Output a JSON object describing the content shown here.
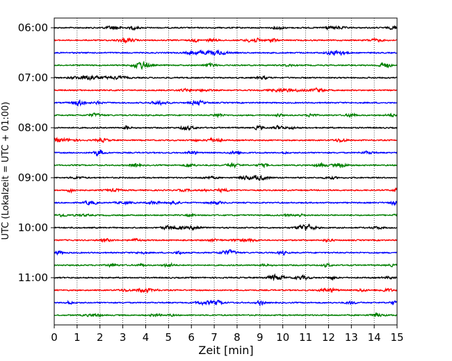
{
  "chart_data": {
    "type": "line",
    "title": "",
    "xlabel": "Zeit  [min]",
    "ylabel": "UTC (Lokalzeit = UTC + 01:00)",
    "xlim": [
      0,
      15
    ],
    "x_ticks": [
      0,
      1,
      2,
      3,
      4,
      5,
      6,
      7,
      8,
      9,
      10,
      11,
      12,
      13,
      14,
      15
    ],
    "grid": "vertical dotted at each minute",
    "y_ticks": [
      "06:00",
      "07:00",
      "08:00",
      "09:00",
      "10:00",
      "11:00"
    ],
    "trace_interval_minutes": 15,
    "color_cycle": [
      "#000000",
      "#ff0000",
      "#0000ff",
      "#008000"
    ],
    "traces": [
      {
        "start": "06:00"
      },
      {
        "start": "06:15"
      },
      {
        "start": "06:30"
      },
      {
        "start": "06:45"
      },
      {
        "start": "07:00"
      },
      {
        "start": "07:15"
      },
      {
        "start": "07:30"
      },
      {
        "start": "07:45"
      },
      {
        "start": "08:00"
      },
      {
        "start": "08:15"
      },
      {
        "start": "08:30"
      },
      {
        "start": "08:45"
      },
      {
        "start": "09:00"
      },
      {
        "start": "09:15"
      },
      {
        "start": "09:30"
      },
      {
        "start": "09:45"
      },
      {
        "start": "10:00"
      },
      {
        "start": "10:15"
      },
      {
        "start": "10:30"
      },
      {
        "start": "10:45"
      },
      {
        "start": "11:00"
      },
      {
        "start": "11:15"
      },
      {
        "start": "11:30"
      },
      {
        "start": "11:45"
      }
    ]
  }
}
